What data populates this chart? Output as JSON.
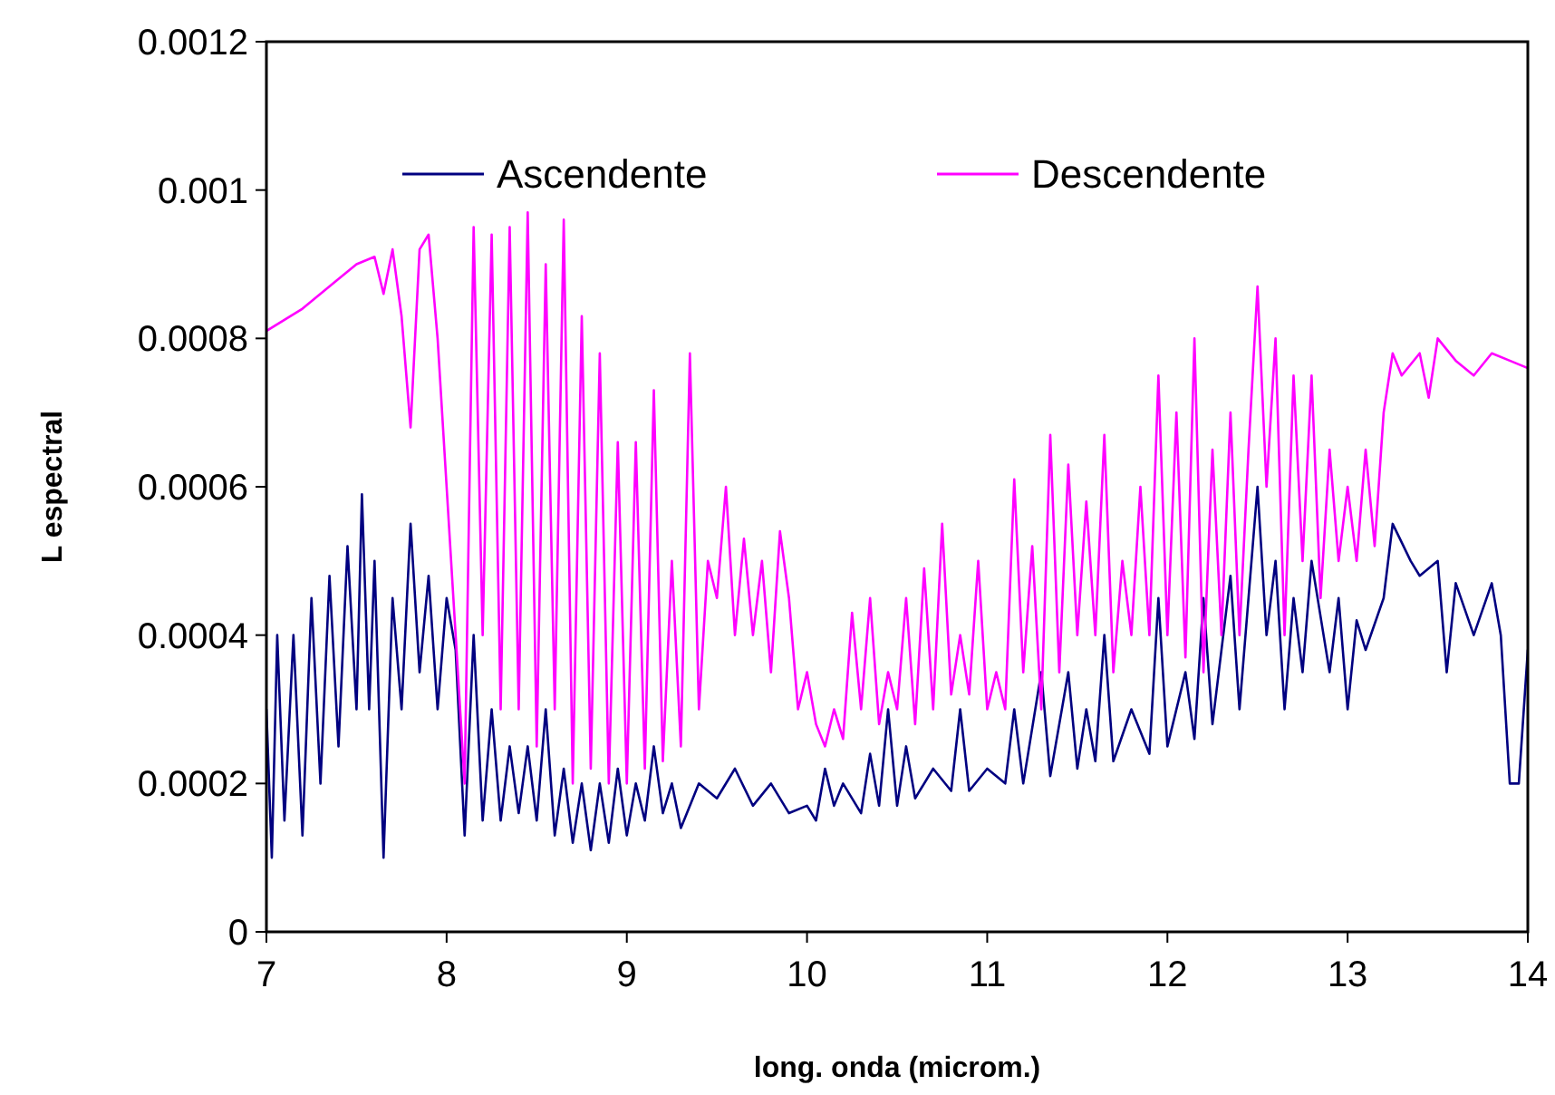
{
  "chart_data": {
    "type": "line",
    "xlabel": "long. onda (microm.)",
    "ylabel": "L espectral",
    "xlim": [
      7,
      14
    ],
    "xticks": [
      7,
      8,
      9,
      10,
      11,
      12,
      13,
      14
    ],
    "ylim": [
      0,
      0.0012
    ],
    "yticks": [
      0,
      0.0002,
      0.0004,
      0.0006,
      0.0008,
      0.001,
      0.0012
    ],
    "legend": "top",
    "grid": false,
    "marker": "none",
    "line_style": "solid",
    "series": [
      {
        "name": "Ascendente",
        "color": "#000080",
        "x": [
          7.0,
          7.03,
          7.06,
          7.1,
          7.15,
          7.2,
          7.25,
          7.3,
          7.35,
          7.4,
          7.45,
          7.5,
          7.53,
          7.57,
          7.6,
          7.65,
          7.7,
          7.75,
          7.8,
          7.85,
          7.9,
          7.95,
          8.0,
          8.05,
          8.1,
          8.15,
          8.2,
          8.25,
          8.3,
          8.35,
          8.4,
          8.45,
          8.5,
          8.55,
          8.6,
          8.65,
          8.7,
          8.75,
          8.8,
          8.85,
          8.9,
          8.95,
          9.0,
          9.05,
          9.1,
          9.15,
          9.2,
          9.25,
          9.3,
          9.4,
          9.5,
          9.6,
          9.7,
          9.8,
          9.9,
          10.0,
          10.05,
          10.1,
          10.15,
          10.2,
          10.3,
          10.35,
          10.4,
          10.45,
          10.5,
          10.55,
          10.6,
          10.7,
          10.8,
          10.85,
          10.9,
          11.0,
          11.1,
          11.15,
          11.2,
          11.3,
          11.35,
          11.45,
          11.5,
          11.55,
          11.6,
          11.65,
          11.7,
          11.8,
          11.9,
          11.95,
          12.0,
          12.1,
          12.15,
          12.2,
          12.25,
          12.35,
          12.4,
          12.5,
          12.55,
          12.6,
          12.65,
          12.7,
          12.75,
          12.8,
          12.9,
          12.95,
          13.0,
          13.05,
          13.1,
          13.2,
          13.25,
          13.35,
          13.4,
          13.5,
          13.55,
          13.6,
          13.7,
          13.8,
          13.85,
          13.9,
          13.95,
          14.0
        ],
        "values": [
          0.0003,
          0.0001,
          0.0004,
          0.00015,
          0.0004,
          0.00013,
          0.00045,
          0.0002,
          0.00048,
          0.00025,
          0.00052,
          0.0003,
          0.00059,
          0.0003,
          0.0005,
          0.0001,
          0.00045,
          0.0003,
          0.00055,
          0.00035,
          0.00048,
          0.0003,
          0.00045,
          0.00038,
          0.00013,
          0.0004,
          0.00015,
          0.0003,
          0.00015,
          0.00025,
          0.00016,
          0.00025,
          0.00015,
          0.0003,
          0.00013,
          0.00022,
          0.00012,
          0.0002,
          0.00011,
          0.0002,
          0.00012,
          0.00022,
          0.00013,
          0.0002,
          0.00015,
          0.00025,
          0.00016,
          0.0002,
          0.00014,
          0.0002,
          0.00018,
          0.00022,
          0.00017,
          0.0002,
          0.00016,
          0.00017,
          0.00015,
          0.00022,
          0.00017,
          0.0002,
          0.00016,
          0.00024,
          0.00017,
          0.0003,
          0.00017,
          0.00025,
          0.00018,
          0.00022,
          0.00019,
          0.0003,
          0.00019,
          0.00022,
          0.0002,
          0.0003,
          0.0002,
          0.00035,
          0.00021,
          0.00035,
          0.00022,
          0.0003,
          0.00023,
          0.0004,
          0.00023,
          0.0003,
          0.00024,
          0.00045,
          0.00025,
          0.00035,
          0.00026,
          0.00045,
          0.00028,
          0.00048,
          0.0003,
          0.0006,
          0.0004,
          0.0005,
          0.0003,
          0.00045,
          0.00035,
          0.0005,
          0.00035,
          0.00045,
          0.0003,
          0.00042,
          0.00038,
          0.00045,
          0.00055,
          0.0005,
          0.00048,
          0.0005,
          0.00035,
          0.00047,
          0.0004,
          0.00047,
          0.0004,
          0.0002,
          0.0002,
          0.00038
        ]
      },
      {
        "name": "Descendente",
        "color": "#ff00ff",
        "x": [
          7.0,
          7.2,
          7.4,
          7.5,
          7.6,
          7.65,
          7.7,
          7.75,
          7.8,
          7.85,
          7.9,
          7.95,
          8.0,
          8.05,
          8.1,
          8.15,
          8.2,
          8.25,
          8.3,
          8.35,
          8.4,
          8.45,
          8.5,
          8.55,
          8.6,
          8.65,
          8.7,
          8.75,
          8.8,
          8.85,
          8.9,
          8.95,
          9.0,
          9.05,
          9.1,
          9.15,
          9.2,
          9.25,
          9.3,
          9.35,
          9.4,
          9.45,
          9.5,
          9.55,
          9.6,
          9.65,
          9.7,
          9.75,
          9.8,
          9.85,
          9.9,
          9.95,
          10.0,
          10.05,
          10.1,
          10.15,
          10.2,
          10.25,
          10.3,
          10.35,
          10.4,
          10.45,
          10.5,
          10.55,
          10.6,
          10.65,
          10.7,
          10.75,
          10.8,
          10.85,
          10.9,
          10.95,
          11.0,
          11.05,
          11.1,
          11.15,
          11.2,
          11.25,
          11.3,
          11.35,
          11.4,
          11.45,
          11.5,
          11.55,
          11.6,
          11.65,
          11.7,
          11.75,
          11.8,
          11.85,
          11.9,
          11.95,
          12.0,
          12.05,
          12.1,
          12.15,
          12.2,
          12.25,
          12.3,
          12.35,
          12.4,
          12.45,
          12.5,
          12.55,
          12.6,
          12.65,
          12.7,
          12.75,
          12.8,
          12.85,
          12.9,
          12.95,
          13.0,
          13.05,
          13.1,
          13.15,
          13.2,
          13.25,
          13.3,
          13.4,
          13.45,
          13.5,
          13.6,
          13.7,
          13.8,
          13.9,
          14.0
        ],
        "values": [
          0.00081,
          0.00084,
          0.00088,
          0.0009,
          0.00091,
          0.00086,
          0.00092,
          0.00083,
          0.00068,
          0.00092,
          0.00094,
          0.0008,
          0.0006,
          0.0004,
          0.0002,
          0.00095,
          0.0004,
          0.00094,
          0.0003,
          0.00095,
          0.0003,
          0.00097,
          0.00025,
          0.0009,
          0.0003,
          0.00096,
          0.0002,
          0.00083,
          0.00022,
          0.00078,
          0.0002,
          0.00066,
          0.0002,
          0.00066,
          0.00022,
          0.00073,
          0.00023,
          0.0005,
          0.00025,
          0.00078,
          0.0003,
          0.0005,
          0.00045,
          0.0006,
          0.0004,
          0.00053,
          0.0004,
          0.0005,
          0.00035,
          0.00054,
          0.00045,
          0.0003,
          0.00035,
          0.00028,
          0.00025,
          0.0003,
          0.00026,
          0.00043,
          0.0003,
          0.00045,
          0.00028,
          0.00035,
          0.0003,
          0.00045,
          0.00028,
          0.00049,
          0.0003,
          0.00055,
          0.00032,
          0.0004,
          0.00032,
          0.0005,
          0.0003,
          0.00035,
          0.0003,
          0.00061,
          0.00035,
          0.00052,
          0.0003,
          0.00067,
          0.00035,
          0.00063,
          0.0004,
          0.00058,
          0.0004,
          0.00067,
          0.00035,
          0.0005,
          0.0004,
          0.0006,
          0.0004,
          0.00075,
          0.0004,
          0.0007,
          0.00037,
          0.0008,
          0.00035,
          0.00065,
          0.0004,
          0.0007,
          0.0004,
          0.00065,
          0.00087,
          0.0006,
          0.0008,
          0.0004,
          0.00075,
          0.0005,
          0.00075,
          0.00045,
          0.00065,
          0.0005,
          0.0006,
          0.0005,
          0.00065,
          0.00052,
          0.0007,
          0.00078,
          0.00075,
          0.00078,
          0.00072,
          0.0008,
          0.00077,
          0.00075,
          0.00078,
          0.00077,
          0.00076
        ]
      }
    ]
  }
}
